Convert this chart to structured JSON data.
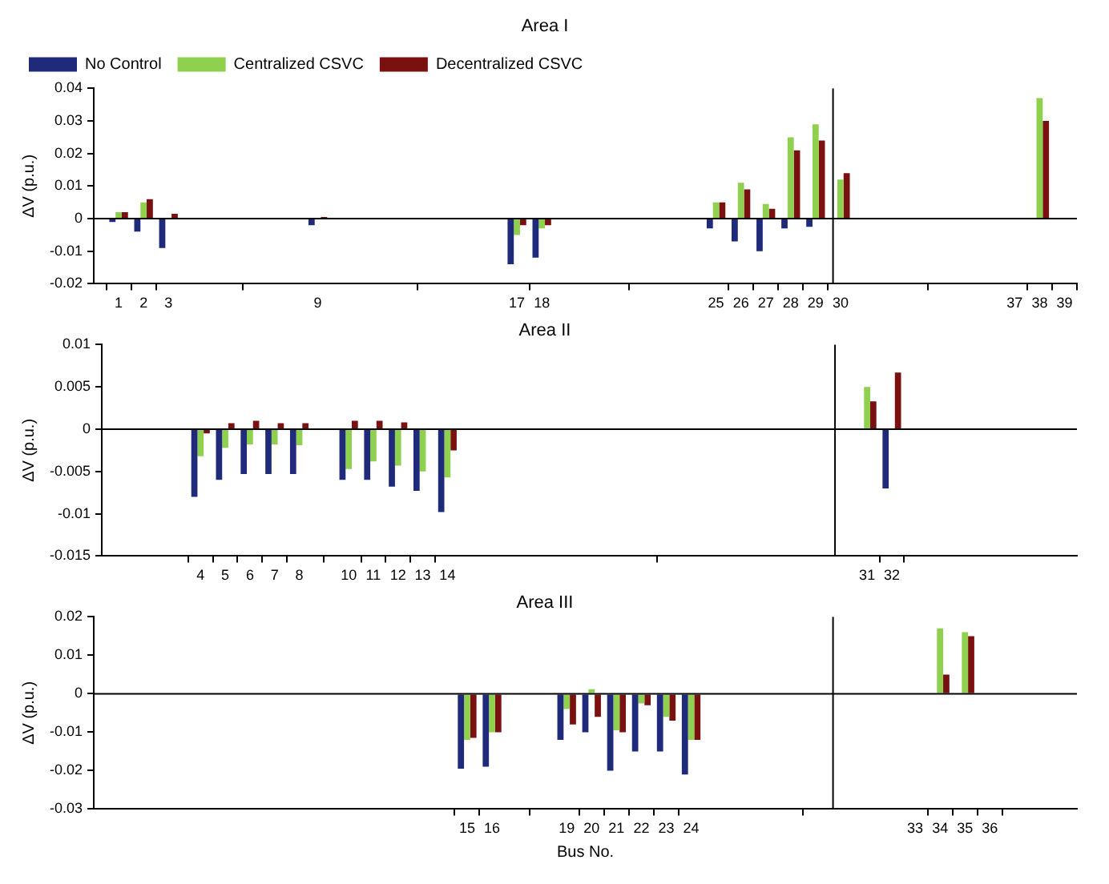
{
  "chart_data": [
    {
      "type": "bar",
      "title": "Area I",
      "ylabel": "ΔV (p.u.)",
      "x": [
        1,
        2,
        3,
        9,
        17,
        18,
        25,
        26,
        27,
        28,
        29,
        30,
        38
      ],
      "series": [
        {
          "name": "No Control",
          "color": "#1f2a7a",
          "values": [
            -0.001,
            -0.004,
            -0.009,
            -0.002,
            -0.014,
            -0.012,
            -0.003,
            -0.007,
            -0.01,
            -0.003,
            -0.0025,
            0,
            0
          ]
        },
        {
          "name": "Centralized CSVC",
          "color": "#8fd14f",
          "values": [
            0.002,
            0.005,
            0,
            0,
            -0.005,
            -0.003,
            0.005,
            0.011,
            0.0045,
            0.025,
            0.029,
            0.012,
            0.037
          ]
        },
        {
          "name": "Decentralized CSVC",
          "color": "#7a1010",
          "values": [
            0.002,
            0.006,
            0.0015,
            0.0005,
            -0.002,
            -0.002,
            0.005,
            0.009,
            0.003,
            0.021,
            0.024,
            0.014,
            0.03
          ]
        }
      ],
      "xlim": [
        0,
        39.5
      ],
      "xticks": [
        1,
        2,
        3,
        9,
        17,
        18,
        25,
        26,
        27,
        28,
        29,
        30,
        37,
        38,
        39
      ],
      "ylim": [
        -0.02,
        0.04
      ],
      "yticks": [
        -0.02,
        -0.01,
        0,
        0.01,
        0.02,
        0.03,
        0.04
      ],
      "ref_lines": [
        {
          "axis": "y",
          "value": 0
        },
        {
          "axis": "x",
          "value": 29.7
        }
      ],
      "grid": false,
      "legend": "top left"
    },
    {
      "type": "bar",
      "title": "Area II",
      "ylabel": "ΔV (p.u.)",
      "x": [
        4,
        5,
        6,
        7,
        8,
        10,
        11,
        12,
        13,
        14,
        31,
        32
      ],
      "series": [
        {
          "color": "#1f2a7a",
          "values": [
            -0.008,
            -0.006,
            -0.0053,
            -0.0053,
            -0.0053,
            -0.006,
            -0.006,
            -0.0068,
            -0.0073,
            -0.0098,
            0,
            -0.007
          ]
        },
        {
          "color": "#8fd14f",
          "values": [
            -0.0032,
            -0.0022,
            -0.0018,
            -0.0018,
            -0.0019,
            -0.0047,
            -0.0038,
            -0.0043,
            -0.005,
            -0.0057,
            0.005,
            0
          ]
        },
        {
          "color": "#7a1010",
          "values": [
            -0.0005,
            0.0007,
            0.001,
            0.0007,
            0.0007,
            0.001,
            0.001,
            0.0008,
            0,
            -0.0025,
            0.0033,
            0.0067
          ]
        }
      ],
      "xlim": [
        0,
        39.5
      ],
      "xticks": [
        4,
        5,
        6,
        7,
        8,
        10,
        11,
        12,
        13,
        14,
        31,
        32
      ],
      "ylim": [
        -0.015,
        0.01
      ],
      "yticks": [
        -0.015,
        -0.01,
        -0.005,
        0,
        0.005,
        0.01
      ],
      "ref_lines": [
        {
          "axis": "y",
          "value": 0
        },
        {
          "axis": "x",
          "value": 29.7
        }
      ],
      "grid": false
    },
    {
      "type": "bar",
      "title": "Area III",
      "ylabel": "ΔV (p.u.)",
      "xlabel": "Bus No.",
      "x": [
        15,
        16,
        19,
        20,
        21,
        22,
        23,
        24,
        34,
        35
      ],
      "series": [
        {
          "color": "#1f2a7a",
          "values": [
            -0.0195,
            -0.019,
            -0.012,
            -0.01,
            -0.02,
            -0.015,
            -0.015,
            -0.021,
            0,
            0
          ]
        },
        {
          "color": "#8fd14f",
          "values": [
            -0.012,
            -0.01,
            -0.004,
            0.0012,
            -0.0095,
            -0.0025,
            -0.006,
            -0.012,
            0.017,
            0.016
          ]
        },
        {
          "color": "#7a1010",
          "values": [
            -0.0115,
            -0.01,
            -0.008,
            -0.006,
            -0.01,
            -0.003,
            -0.007,
            -0.012,
            0.005,
            0.015
          ]
        }
      ],
      "xlim": [
        0,
        39.5
      ],
      "xticks": [
        15,
        16,
        19,
        20,
        21,
        22,
        23,
        24,
        33,
        34,
        35,
        36
      ],
      "ylim": [
        -0.03,
        0.02
      ],
      "yticks": [
        -0.03,
        -0.02,
        -0.01,
        0,
        0.01,
        0.02
      ],
      "ref_lines": [
        {
          "axis": "y",
          "value": 0
        },
        {
          "axis": "x",
          "value": 29.7
        }
      ],
      "grid": false
    }
  ]
}
